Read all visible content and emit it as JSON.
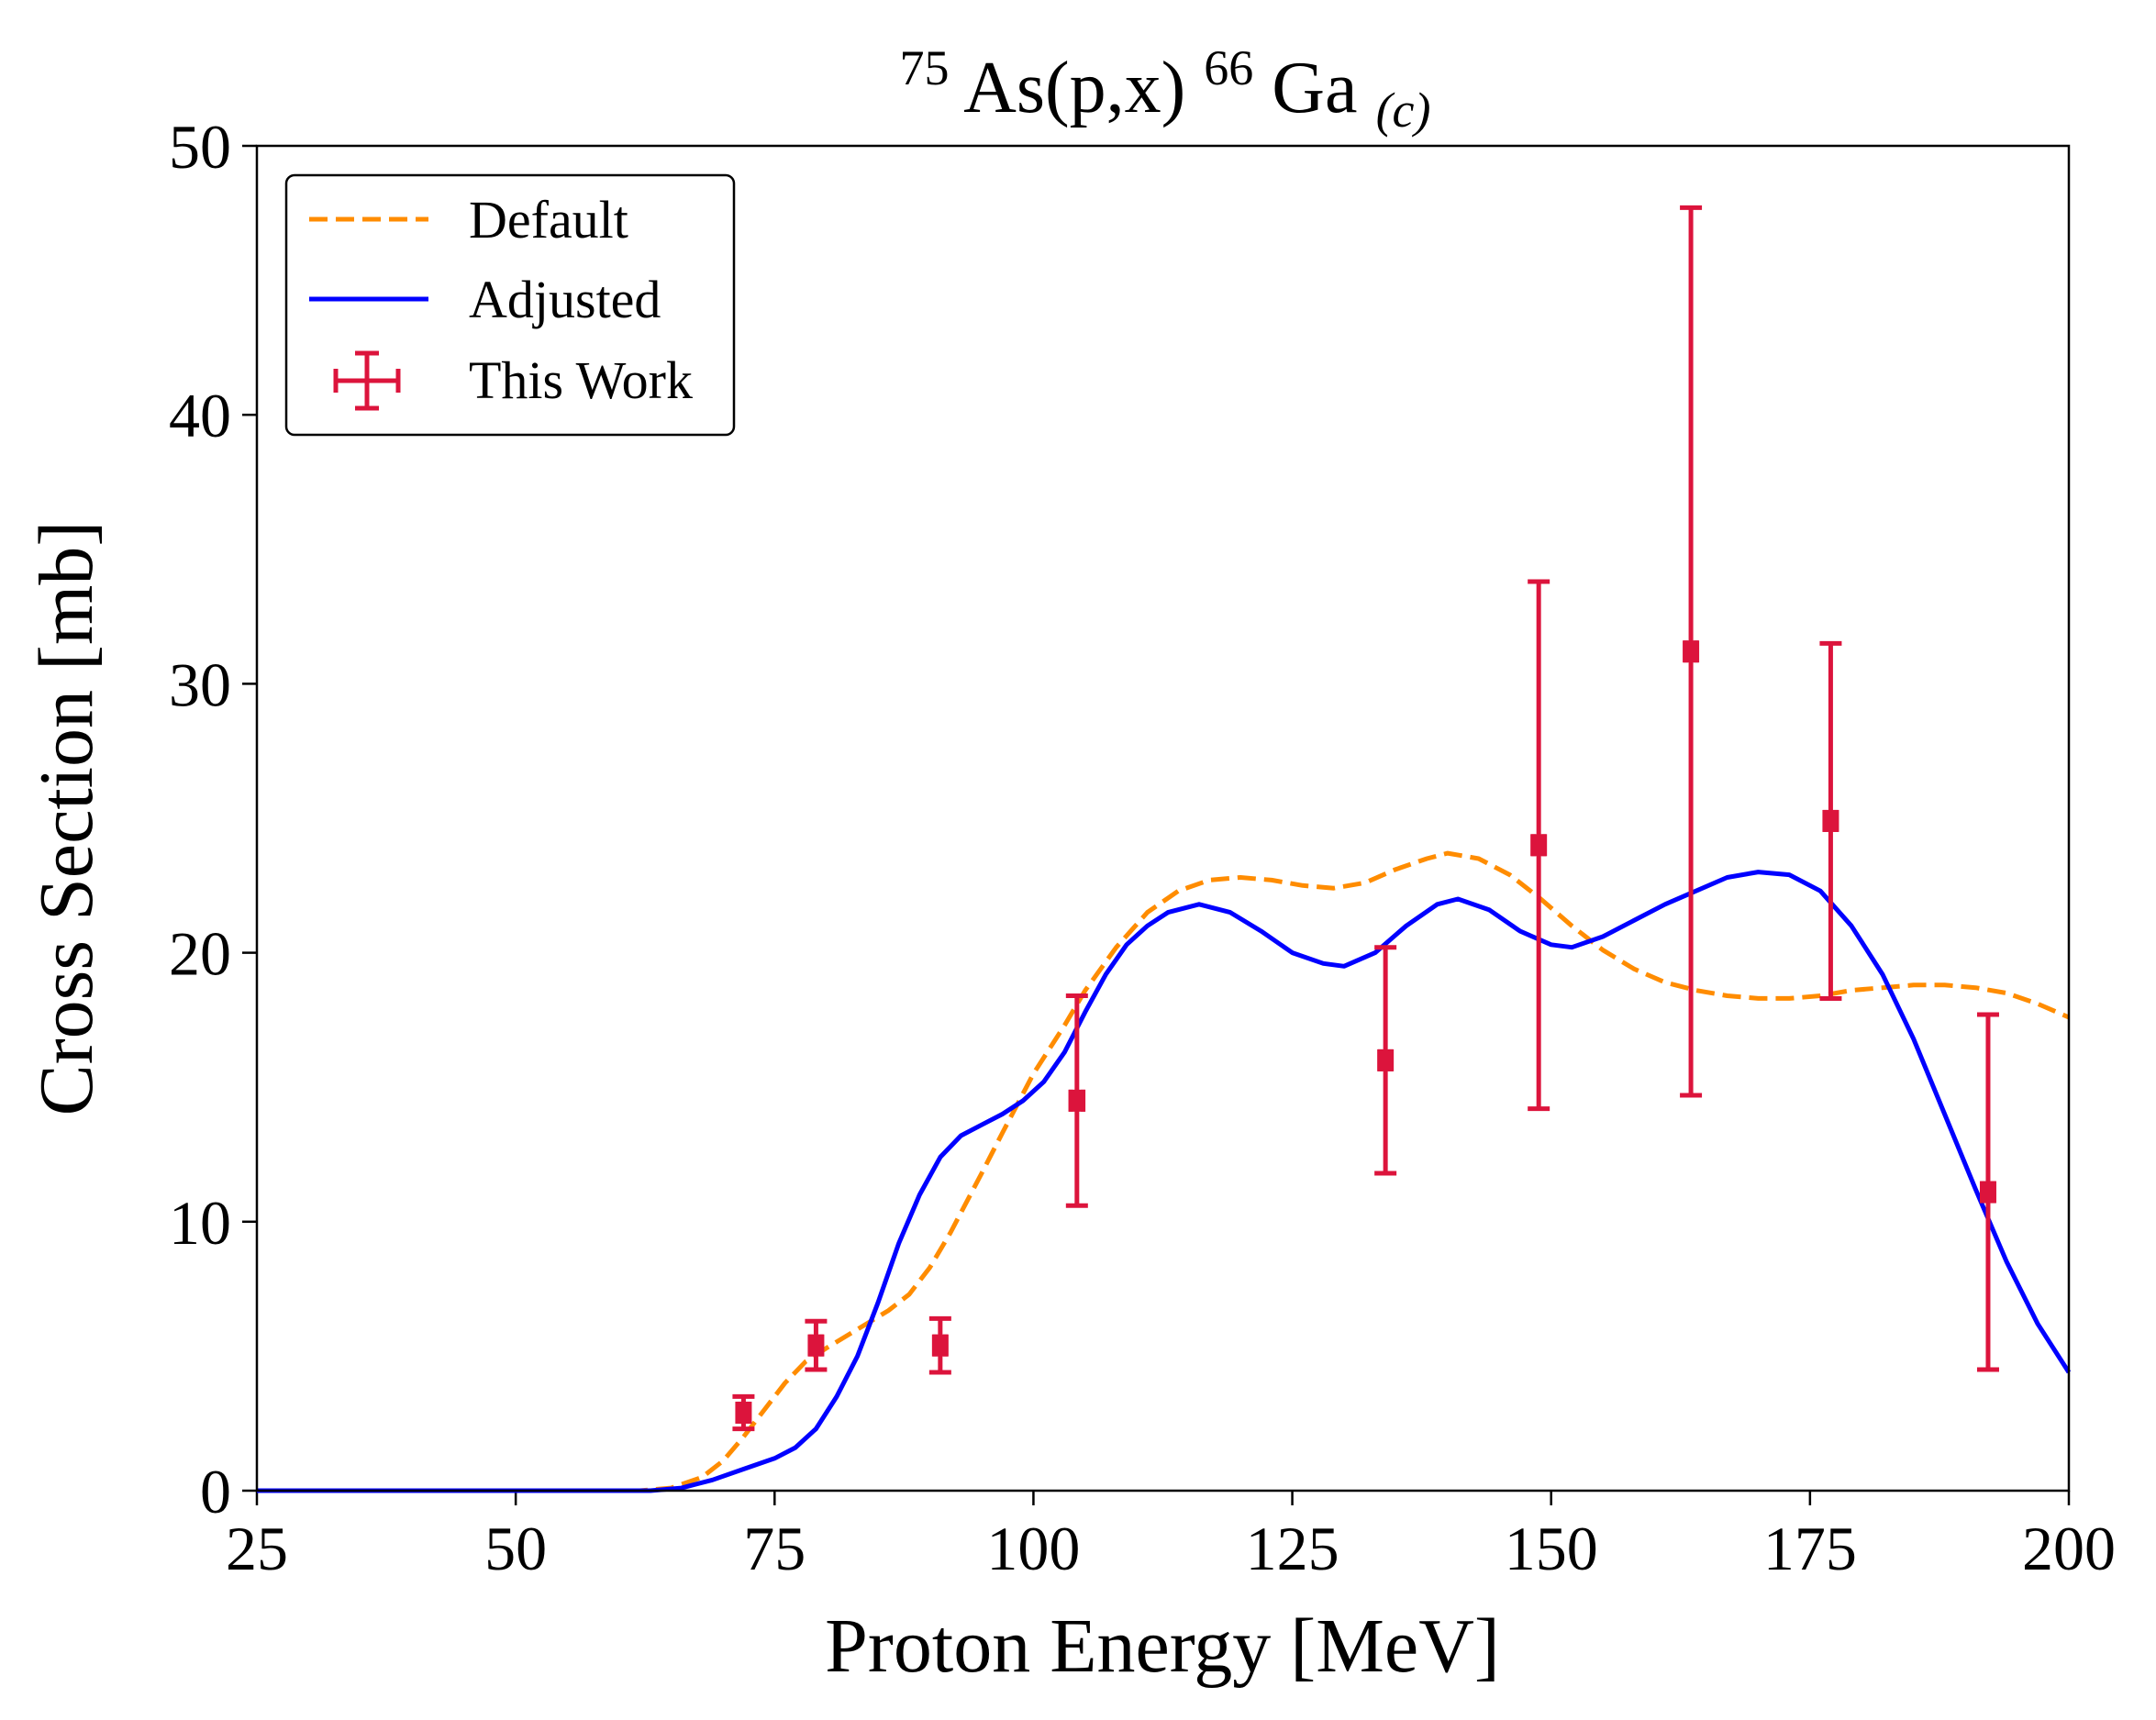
{
  "chart_data": {
    "type": "line",
    "title": {
      "sup1": "75",
      "main1": "As(p,x)",
      "sup2": "66",
      "main2": "Ga",
      "sub": "(c)"
    },
    "xlabel": "Proton Energy [MeV]",
    "ylabel": "Cross Section [mb]",
    "xlim": [
      25,
      200
    ],
    "ylim": [
      0,
      50
    ],
    "xticks": [
      25,
      50,
      75,
      100,
      125,
      150,
      175,
      200
    ],
    "yticks": [
      0,
      10,
      20,
      30,
      40,
      50
    ],
    "legend_position": "top-left",
    "colors": {
      "default": "#ff8c00",
      "adjusted": "#0000ff",
      "data": "#dc143c"
    },
    "series": [
      {
        "name": "Default",
        "style": "dashed",
        "points": [
          [
            25,
            0
          ],
          [
            50,
            0
          ],
          [
            62,
            0
          ],
          [
            65,
            0.1
          ],
          [
            68,
            0.5
          ],
          [
            70,
            1.1
          ],
          [
            72,
            2.0
          ],
          [
            74,
            3.0
          ],
          [
            76,
            4.0
          ],
          [
            78,
            4.8
          ],
          [
            80,
            5.3
          ],
          [
            83,
            6.0
          ],
          [
            86,
            6.7
          ],
          [
            88,
            7.3
          ],
          [
            90,
            8.3
          ],
          [
            92,
            9.6
          ],
          [
            95,
            11.8
          ],
          [
            97,
            13.3
          ],
          [
            100,
            15.5
          ],
          [
            103,
            17.3
          ],
          [
            105,
            18.6
          ],
          [
            108,
            20.2
          ],
          [
            111,
            21.5
          ],
          [
            114,
            22.3
          ],
          [
            117,
            22.7
          ],
          [
            120,
            22.8
          ],
          [
            123,
            22.7
          ],
          [
            126,
            22.5
          ],
          [
            129,
            22.4
          ],
          [
            132,
            22.6
          ],
          [
            135,
            23.1
          ],
          [
            138,
            23.5
          ],
          [
            140,
            23.7
          ],
          [
            143,
            23.5
          ],
          [
            146,
            22.9
          ],
          [
            149,
            22.0
          ],
          [
            152,
            21.0
          ],
          [
            155,
            20.1
          ],
          [
            158,
            19.4
          ],
          [
            161,
            18.9
          ],
          [
            164,
            18.6
          ],
          [
            167,
            18.4
          ],
          [
            170,
            18.3
          ],
          [
            173,
            18.3
          ],
          [
            176,
            18.4
          ],
          [
            179,
            18.6
          ],
          [
            182,
            18.7
          ],
          [
            185,
            18.8
          ],
          [
            188,
            18.8
          ],
          [
            191,
            18.7
          ],
          [
            194,
            18.5
          ],
          [
            197,
            18.1
          ],
          [
            200,
            17.6
          ]
        ]
      },
      {
        "name": "Adjusted",
        "style": "solid",
        "points": [
          [
            25,
            0
          ],
          [
            50,
            0
          ],
          [
            63,
            0
          ],
          [
            66,
            0.1
          ],
          [
            69,
            0.4
          ],
          [
            72,
            0.8
          ],
          [
            75,
            1.2
          ],
          [
            77,
            1.6
          ],
          [
            79,
            2.3
          ],
          [
            81,
            3.5
          ],
          [
            83,
            5.0
          ],
          [
            85,
            7.0
          ],
          [
            87,
            9.2
          ],
          [
            89,
            11.0
          ],
          [
            91,
            12.4
          ],
          [
            93,
            13.2
          ],
          [
            95,
            13.6
          ],
          [
            97,
            14.0
          ],
          [
            99,
            14.5
          ],
          [
            101,
            15.2
          ],
          [
            103,
            16.3
          ],
          [
            105,
            17.8
          ],
          [
            107,
            19.2
          ],
          [
            109,
            20.3
          ],
          [
            111,
            21.0
          ],
          [
            113,
            21.5
          ],
          [
            116,
            21.8
          ],
          [
            119,
            21.5
          ],
          [
            122,
            20.8
          ],
          [
            125,
            20.0
          ],
          [
            128,
            19.6
          ],
          [
            130,
            19.5
          ],
          [
            133,
            20.0
          ],
          [
            136,
            21.0
          ],
          [
            139,
            21.8
          ],
          [
            141,
            22.0
          ],
          [
            144,
            21.6
          ],
          [
            147,
            20.8
          ],
          [
            150,
            20.3
          ],
          [
            152,
            20.2
          ],
          [
            155,
            20.6
          ],
          [
            158,
            21.2
          ],
          [
            161,
            21.8
          ],
          [
            164,
            22.3
          ],
          [
            167,
            22.8
          ],
          [
            170,
            23.0
          ],
          [
            173,
            22.9
          ],
          [
            176,
            22.3
          ],
          [
            179,
            21.0
          ],
          [
            182,
            19.2
          ],
          [
            185,
            16.8
          ],
          [
            188,
            14.0
          ],
          [
            191,
            11.2
          ],
          [
            194,
            8.5
          ],
          [
            197,
            6.2
          ],
          [
            200,
            4.4
          ]
        ]
      }
    ],
    "errorbar_series": {
      "name": "This Work",
      "points": [
        {
          "x": 72.0,
          "y": 2.9,
          "yerr": 0.6,
          "xerr": 0.4
        },
        {
          "x": 79.0,
          "y": 5.4,
          "yerr": 0.9,
          "xerr": 0.5
        },
        {
          "x": 91.0,
          "y": 5.4,
          "yerr": 1.0,
          "xerr": 0.5
        },
        {
          "x": 104.2,
          "y": 14.5,
          "yerr": 3.9,
          "xerr": 0.6
        },
        {
          "x": 134.0,
          "y": 16.0,
          "yerr": 4.2,
          "xerr": 0.5
        },
        {
          "x": 148.8,
          "y": 24.0,
          "yerr": 9.8,
          "xerr": 0.5
        },
        {
          "x": 163.5,
          "y": 31.2,
          "yerr": 16.5,
          "xerr": 0.5
        },
        {
          "x": 177.0,
          "y": 24.9,
          "yerr": 6.6,
          "xerr": 0.5
        },
        {
          "x": 192.2,
          "y": 11.1,
          "yerr": 6.6,
          "xerr": 0.5
        }
      ]
    }
  }
}
